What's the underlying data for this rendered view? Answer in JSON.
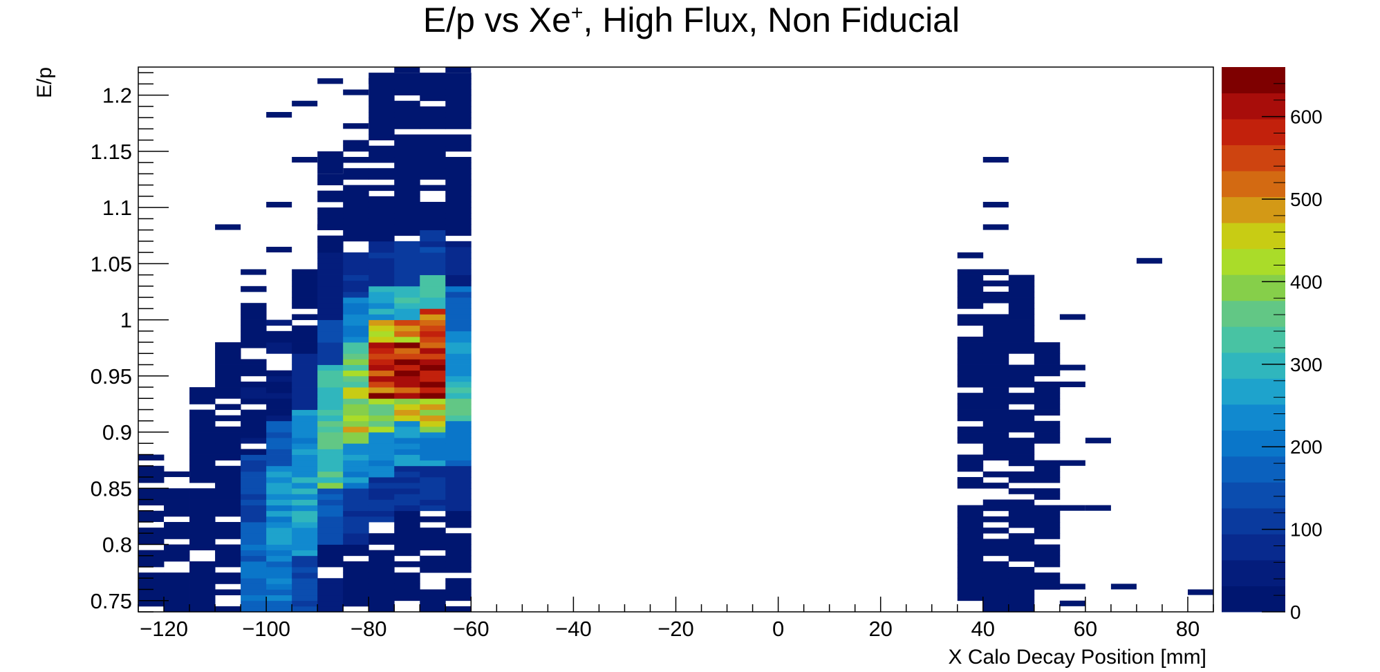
{
  "chart_data": {
    "type": "heatmap",
    "title_main": "E/p vs Xe",
    "title_sup": "+",
    "title_rest": ", High Flux, Non Fiducial",
    "xlabel": "X Calo Decay Position [mm]",
    "ylabel": "E/p",
    "xlim": [
      -125,
      85
    ],
    "ylim": [
      0.74,
      1.225
    ],
    "xticks": [
      -120,
      -100,
      -80,
      -60,
      -40,
      -20,
      0,
      20,
      40,
      60,
      80
    ],
    "xtick_labels": [
      "−120",
      "−100",
      "−80",
      "−60",
      "−40",
      "−20",
      "0",
      "20",
      "40",
      "60",
      "80"
    ],
    "yticks": [
      0.75,
      0.8,
      0.85,
      0.9,
      0.95,
      1.0,
      1.05,
      1.1,
      1.15,
      1.2
    ],
    "ytick_labels": [
      "0.75",
      "0.8",
      "0.85",
      "0.9",
      "0.95",
      "1",
      "1.05",
      "1.1",
      "1.15",
      "1.2"
    ],
    "bin_width_x": 5,
    "bin_width_y": 0.005,
    "z_range": [
      0,
      660
    ],
    "colorbar_ticks": [
      0,
      100,
      200,
      300,
      400,
      500,
      600
    ],
    "colorbar_labels": [
      "0",
      "100",
      "200",
      "300",
      "400",
      "500",
      "600"
    ],
    "palette": [
      "#001670",
      "#041d7c",
      "#082a8e",
      "#0a3a9e",
      "#0b4daf",
      "#0b61be",
      "#0a76c9",
      "#1189cf",
      "#1ea3cc",
      "#30b6bd",
      "#48c3a3",
      "#62c785",
      "#86cf4a",
      "#aadc29",
      "#c8cc14",
      "#d39916",
      "#d36a12",
      "#ce4410",
      "#c2210c",
      "#a80d0a",
      "#7e0000"
    ],
    "columns": [
      {
        "x0": -125,
        "ranges": [
          [
            0.74,
            0.88,
            15
          ]
        ]
      },
      {
        "x0": -120,
        "ranges": [
          [
            0.74,
            0.85,
            15
          ]
        ]
      },
      {
        "x0": -115,
        "ranges": [
          [
            0.74,
            0.94,
            20
          ]
        ]
      },
      {
        "x0": -110,
        "ranges": [
          [
            0.74,
            0.98,
            25
          ]
        ]
      },
      {
        "x0": -105,
        "ranges": [
          [
            0.74,
            0.82,
            180
          ],
          [
            0.82,
            0.88,
            120
          ],
          [
            0.88,
            0.95,
            30
          ],
          [
            0.95,
            1.03,
            20
          ]
        ]
      },
      {
        "x0": -100,
        "ranges": [
          [
            0.74,
            0.8,
            210
          ],
          [
            0.8,
            0.87,
            250
          ],
          [
            0.87,
            0.91,
            150
          ],
          [
            0.91,
            1.0,
            30
          ]
        ]
      },
      {
        "x0": -95,
        "ranges": [
          [
            0.74,
            0.79,
            130
          ],
          [
            0.79,
            0.86,
            270
          ],
          [
            0.86,
            0.92,
            240
          ],
          [
            0.92,
            0.97,
            80
          ],
          [
            0.97,
            1.05,
            20
          ]
        ]
      },
      {
        "x0": -90,
        "ranges": [
          [
            0.74,
            0.8,
            30
          ],
          [
            0.8,
            0.85,
            160
          ],
          [
            0.85,
            0.92,
            340
          ],
          [
            0.92,
            0.96,
            300
          ],
          [
            0.96,
            1.0,
            120
          ],
          [
            1.0,
            1.06,
            40
          ],
          [
            1.06,
            1.15,
            15
          ]
        ]
      },
      {
        "x0": -85,
        "ranges": [
          [
            0.74,
            0.8,
            20
          ],
          [
            0.8,
            0.85,
            100
          ],
          [
            0.85,
            0.89,
            240
          ],
          [
            0.89,
            0.94,
            420
          ],
          [
            0.94,
            0.98,
            380
          ],
          [
            0.98,
            1.02,
            230
          ],
          [
            1.02,
            1.06,
            90
          ],
          [
            1.06,
            1.16,
            15
          ]
        ]
      },
      {
        "x0": -80,
        "ranges": [
          [
            0.74,
            0.82,
            25
          ],
          [
            0.82,
            0.86,
            90
          ],
          [
            0.86,
            0.9,
            220
          ],
          [
            0.9,
            0.93,
            400
          ],
          [
            0.93,
            0.98,
            560
          ],
          [
            0.98,
            1.0,
            470
          ],
          [
            1.0,
            1.03,
            260
          ],
          [
            1.03,
            1.07,
            90
          ],
          [
            1.07,
            1.22,
            15
          ]
        ]
      },
      {
        "x0": -75,
        "ranges": [
          [
            0.74,
            0.83,
            25
          ],
          [
            0.83,
            0.87,
            100
          ],
          [
            0.87,
            0.91,
            250
          ],
          [
            0.91,
            0.93,
            420
          ],
          [
            0.93,
            0.98,
            600
          ],
          [
            0.98,
            1.0,
            500
          ],
          [
            1.0,
            1.03,
            300
          ],
          [
            1.03,
            1.07,
            110
          ],
          [
            1.07,
            1.22,
            15
          ]
        ]
      },
      {
        "x0": -70,
        "ranges": [
          [
            0.74,
            0.83,
            25
          ],
          [
            0.83,
            0.87,
            100
          ],
          [
            0.87,
            0.9,
            230
          ],
          [
            0.9,
            0.93,
            430
          ],
          [
            0.93,
            0.98,
            610
          ],
          [
            0.98,
            1.01,
            520
          ],
          [
            1.01,
            1.04,
            310
          ],
          [
            1.04,
            1.08,
            110
          ],
          [
            1.08,
            1.22,
            15
          ]
        ]
      },
      {
        "x0": -65,
        "ranges": [
          [
            0.74,
            0.83,
            20
          ],
          [
            0.83,
            0.87,
            80
          ],
          [
            0.87,
            0.91,
            200
          ],
          [
            0.91,
            0.95,
            320
          ],
          [
            0.95,
            0.99,
            250
          ],
          [
            0.99,
            1.03,
            180
          ],
          [
            1.03,
            1.07,
            70
          ],
          [
            1.07,
            1.22,
            15
          ]
        ]
      },
      {
        "x0": 35,
        "ranges": [
          [
            0.75,
            1.06,
            15
          ]
        ]
      },
      {
        "x0": 40,
        "ranges": [
          [
            0.74,
            1.05,
            15
          ]
        ]
      },
      {
        "x0": 45,
        "ranges": [
          [
            0.74,
            1.04,
            15
          ]
        ]
      },
      {
        "x0": 50,
        "ranges": [
          [
            0.76,
            0.98,
            10
          ]
        ]
      }
    ],
    "scatter_bins": [
      [
        -110,
        1.08
      ],
      [
        -105,
        1.04
      ],
      [
        -100,
        1.1
      ],
      [
        -100,
        1.06
      ],
      [
        -100,
        1.18
      ],
      [
        -95,
        1.19
      ],
      [
        -95,
        1.14
      ],
      [
        -90,
        1.08
      ],
      [
        -90,
        1.13
      ],
      [
        -90,
        1.21
      ],
      [
        -85,
        1.2
      ],
      [
        -85,
        1.17
      ],
      [
        -80,
        1.21
      ],
      [
        -75,
        1.22
      ],
      [
        -65,
        1.22
      ],
      [
        40,
        1.14
      ],
      [
        40,
        1.1
      ],
      [
        40,
        1.08
      ],
      [
        55,
        1.0
      ],
      [
        55,
        0.955
      ],
      [
        55,
        0.94
      ],
      [
        55,
        0.87
      ],
      [
        55,
        0.83
      ],
      [
        60,
        0.89
      ],
      [
        60,
        0.83
      ],
      [
        65,
        0.76
      ],
      [
        70,
        1.05
      ],
      [
        80,
        0.755
      ],
      [
        55,
        0.76
      ],
      [
        55,
        0.745
      ],
      [
        45,
        0.75
      ],
      [
        -120,
        0.86
      ],
      [
        -125,
        0.82
      ]
    ]
  }
}
